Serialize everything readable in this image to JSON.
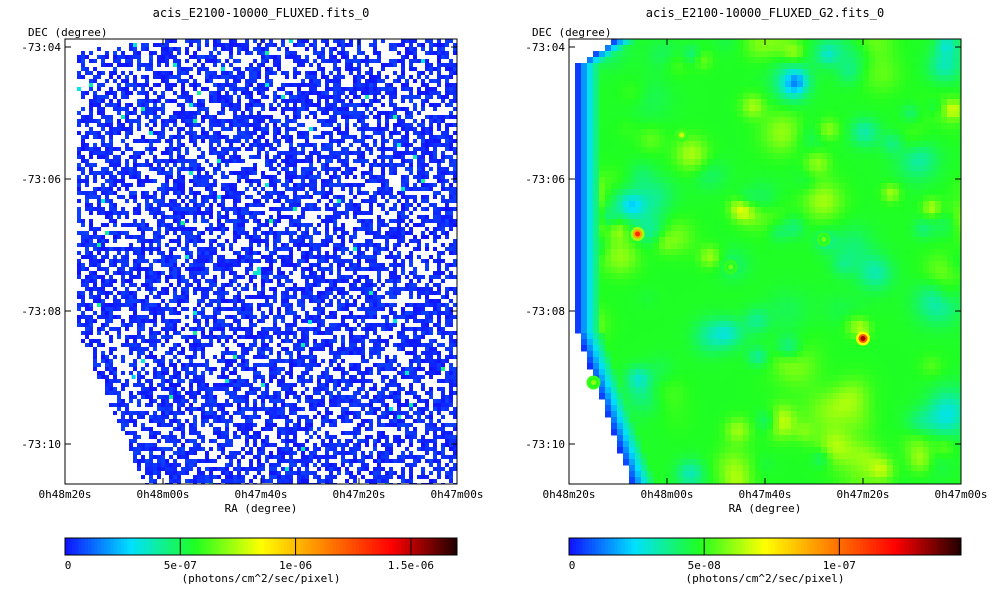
{
  "chart_data": [
    {
      "type": "heatmap",
      "title": "acis_E2100-10000_FLUXED.fits_0",
      "xlabel": "RA (degree)",
      "ylabel": "DEC (degree)",
      "x_ticks": [
        "0h48m20s",
        "0h48m00s",
        "0h47m40s",
        "0h47m20s",
        "0h47m00s"
      ],
      "y_ticks": [
        "-73:04",
        "-73:06",
        "-73:08",
        "-73:10"
      ],
      "colorbar": {
        "label": "(photons/cm^2/sec/pixel)",
        "range": [
          0,
          1.7e-06
        ],
        "ticks": [
          {
            "value": 0,
            "label": "0"
          },
          {
            "value": 5e-07,
            "label": "5e-07"
          },
          {
            "value": 1e-06,
            "label": "1e-06"
          },
          {
            "value": 1.5e-06,
            "label": "1.5e-06"
          }
        ]
      },
      "image_style": "noisy-pixels",
      "colormap": [
        "#1010ff",
        "#00e0ff",
        "#20ff20",
        "#ffff00",
        "#ff8000",
        "#ff0000",
        "#200000"
      ],
      "sources": [
        {
          "ra": "0h47m56s",
          "dec": "-73:06:40",
          "relative_flux": 0.25
        },
        {
          "ra": "0h47m30s",
          "dec": "-73:08:10",
          "relative_flux": 0.2
        },
        {
          "ra": "0h48m06s",
          "dec": "-73:09:00",
          "relative_flux": 0.15
        }
      ]
    },
    {
      "type": "heatmap",
      "title": "acis_E2100-10000_FLUXED_G2.fits_0",
      "xlabel": "RA (degree)",
      "ylabel": "DEC (degree)",
      "x_ticks": [
        "0h48m20s",
        "0h48m00s",
        "0h47m40s",
        "0h47m20s",
        "0h47m00s"
      ],
      "y_ticks": [
        "-73:04",
        "-73:06",
        "-73:08",
        "-73:10"
      ],
      "colorbar": {
        "label": "(photons/cm^2/sec/pixel)",
        "range": [
          0,
          1.45e-07
        ],
        "ticks": [
          {
            "value": 0,
            "label": "0"
          },
          {
            "value": 5e-08,
            "label": "5e-08"
          },
          {
            "value": 1e-07,
            "label": "1e-07"
          }
        ]
      },
      "image_style": "smoothed",
      "colormap": [
        "#1010ff",
        "#00e0ff",
        "#20ff20",
        "#ffff00",
        "#ff8000",
        "#ff0000",
        "#200000"
      ],
      "sources": [
        {
          "ra": "0h48m06s",
          "dec": "-73:06:50",
          "relative_flux": 0.78
        },
        {
          "ra": "0h47m20s",
          "dec": "-73:08:25",
          "relative_flux": 0.9
        },
        {
          "ra": "0h47m57s",
          "dec": "-73:05:20",
          "relative_flux": 0.46
        },
        {
          "ra": "0h48m15s",
          "dec": "-73:09:05",
          "relative_flux": 0.42
        },
        {
          "ra": "0h47m28s",
          "dec": "-73:06:55",
          "relative_flux": 0.4
        },
        {
          "ra": "0h47m47s",
          "dec": "-73:07:20",
          "relative_flux": 0.4
        }
      ]
    }
  ]
}
